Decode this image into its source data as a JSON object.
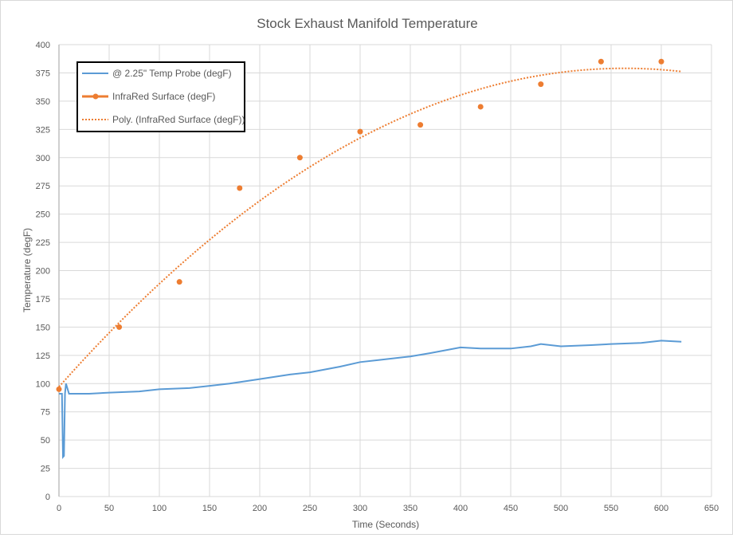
{
  "chart_data": {
    "type": "line",
    "title": "Stock Exhaust Manifold Temperature",
    "xlabel": "Time (Seconds)",
    "ylabel": "Temperature (degF)",
    "xlim": [
      0,
      650
    ],
    "ylim": [
      0,
      400
    ],
    "xticks": [
      0,
      50,
      100,
      150,
      200,
      250,
      300,
      350,
      400,
      450,
      500,
      550,
      600,
      650
    ],
    "yticks": [
      0,
      25,
      50,
      75,
      100,
      125,
      150,
      175,
      200,
      225,
      250,
      275,
      300,
      325,
      350,
      375,
      400
    ],
    "grid": true,
    "legend_position": "top-left",
    "series": [
      {
        "name": "@ 2.25\" Temp Probe (degF)",
        "color": "#5b9bd5",
        "x": [
          0,
          3,
          4,
          5,
          6,
          7,
          10,
          30,
          50,
          80,
          100,
          130,
          150,
          170,
          200,
          230,
          250,
          280,
          300,
          320,
          350,
          370,
          400,
          420,
          450,
          470,
          480,
          500,
          530,
          550,
          580,
          600,
          620
        ],
        "y": [
          91,
          91,
          35,
          36,
          91,
          100,
          91,
          91,
          92,
          93,
          95,
          96,
          98,
          100,
          104,
          108,
          110,
          115,
          119,
          121,
          124,
          127,
          132,
          131,
          131,
          133,
          135,
          133,
          134,
          135,
          136,
          138,
          137
        ]
      },
      {
        "name": "InfraRed Surface (degF)",
        "color": "#ed7d31",
        "x": [
          0,
          60,
          120,
          180,
          240,
          300,
          360,
          420,
          480,
          540,
          600
        ],
        "y": [
          95,
          150,
          190,
          273,
          300,
          323,
          329,
          345,
          365,
          385,
          385
        ]
      }
    ],
    "trendline": {
      "name": "Poly. (InfraRed Surface (degF))",
      "color": "#ed7d31",
      "order": 2,
      "x_range": [
        0,
        620
      ]
    }
  }
}
